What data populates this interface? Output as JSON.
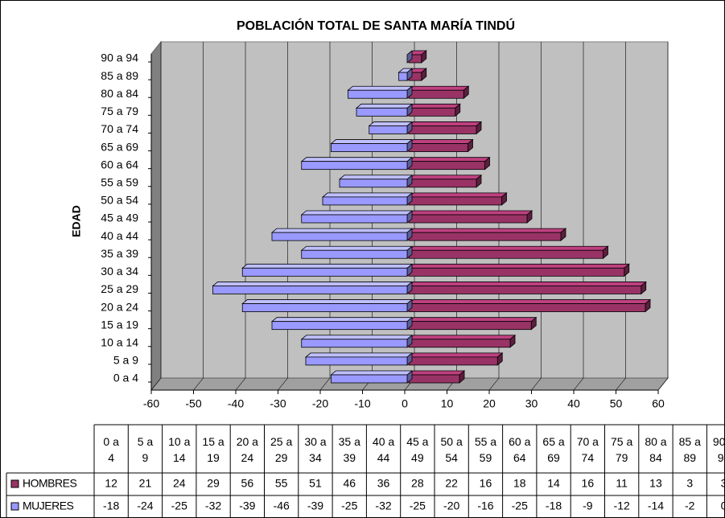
{
  "chart_data": {
    "type": "bar3d-horizontal",
    "title": "POBLACIÓN TOTAL DE SANTA MARÍA TINDÚ",
    "y_label": "EDAD",
    "categories": [
      "0 a 4",
      "5 a 9",
      "10 a 14",
      "15 a 19",
      "20 a 24",
      "25 a 29",
      "30 a 34",
      "35 a 39",
      "40 a 44",
      "45 a 49",
      "50 a 54",
      "55 a 59",
      "60 a 64",
      "65 a 69",
      "70 a 74",
      "75 a 79",
      "80 a 84",
      "85 a 89",
      "90 a 94"
    ],
    "series": [
      {
        "name": "HOMBRES",
        "color": "#993366",
        "values": [
          12,
          21,
          24,
          29,
          56,
          55,
          51,
          46,
          36,
          28,
          22,
          16,
          18,
          14,
          16,
          11,
          13,
          3,
          3
        ]
      },
      {
        "name": "MUJERES",
        "color": "#9999ff",
        "values": [
          -18,
          -24,
          -25,
          -32,
          -39,
          -46,
          -39,
          -25,
          -32,
          -25,
          -20,
          -16,
          -25,
          -18,
          -9,
          -12,
          -14,
          -2,
          0
        ]
      }
    ],
    "xlim": [
      -60,
      60
    ],
    "xticks": [
      -60,
      -50,
      -40,
      -30,
      -20,
      -10,
      0,
      10,
      20,
      30,
      40,
      50,
      60
    ],
    "grid": true,
    "data_table": true
  }
}
